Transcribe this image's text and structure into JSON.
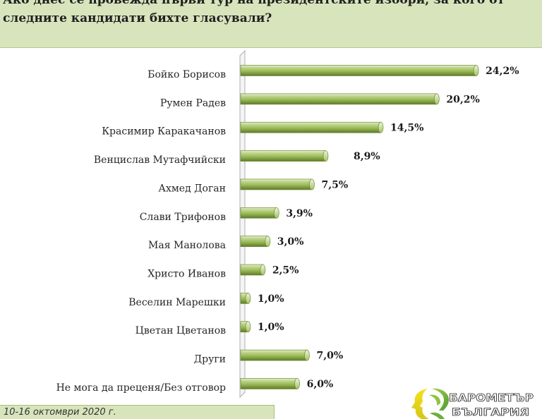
{
  "colors": {
    "bar": "#9bbb59",
    "header_bg": "#d8e4bc",
    "footer_bg": "#d8e4bc"
  },
  "chart_data": {
    "type": "bar",
    "orientation": "horizontal",
    "title_lines": [
      "Ако днес се провежда първи тур на президентските избори, за кого от",
      "следните кандидати бихте гласували?"
    ],
    "categories": [
      "Бойко Борисов",
      "Румен Радев",
      "Красимир Каракачанов",
      "Венцислав Мутафчийски",
      "Ахмед Доган",
      "Слави Трифонов",
      "Мая Манолова",
      "Христо Иванов",
      "Веселин Марешки",
      "Цветан Цветанов",
      "Други",
      "Не мога да преценя/Без отговор"
    ],
    "values": [
      24.2,
      20.2,
      14.5,
      8.9,
      7.5,
      3.9,
      3.0,
      2.5,
      1.0,
      1.0,
      7.0,
      6.0
    ],
    "value_labels": [
      "24,2%",
      "20,2%",
      "14,5%",
      "8,9%",
      "7,5%",
      "3,9%",
      "3,0%",
      "2,5%",
      "1,0%",
      "1,0%",
      "7,0%",
      "6,0%"
    ],
    "grid": false,
    "legend": "none"
  },
  "footer": {
    "date": "10-16 октомври 2020 г."
  },
  "logo": {
    "line1": "БАРОМЕТЪР",
    "line2": "БЪЛГАРИЯ"
  }
}
